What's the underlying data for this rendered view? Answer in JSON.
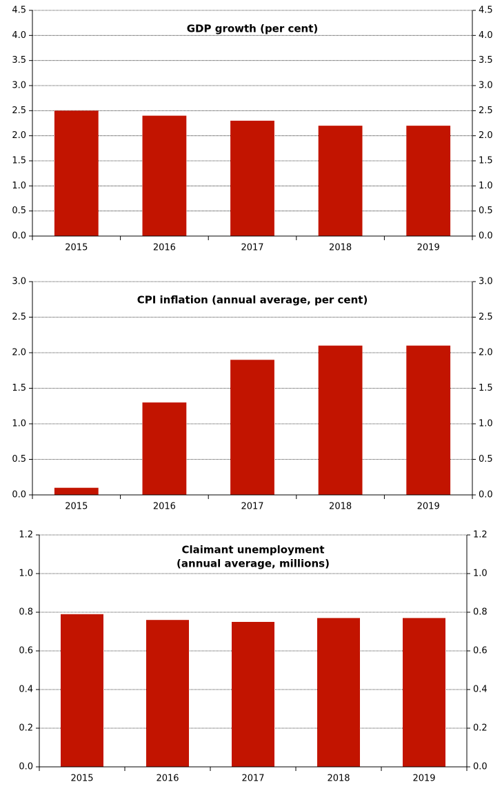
{
  "chart_data": [
    {
      "type": "bar",
      "title": "GDP growth (per cent)",
      "categories": [
        "2015",
        "2016",
        "2017",
        "2018",
        "2019"
      ],
      "values": [
        2.5,
        2.4,
        2.3,
        2.2,
        2.2
      ],
      "color": "#c21400",
      "ylim": [
        0,
        4.5
      ],
      "yticks": [
        {
          "value": 0,
          "label": "0.0"
        },
        0.5,
        {
          "value": 1,
          "label": "1.0"
        },
        1.5,
        {
          "value": 2,
          "label": "2.0"
        },
        2.5,
        {
          "value": 3,
          "label": "3.0"
        },
        3.5,
        {
          "value": 4,
          "label": "4.0"
        },
        4.5
      ],
      "grid": true
    },
    {
      "type": "bar",
      "title": "CPI inflation (annual average, per cent)",
      "categories": [
        "2015",
        "2016",
        "2017",
        "2018",
        "2019"
      ],
      "values": [
        0.1,
        1.3,
        1.9,
        2.1,
        2.1
      ],
      "color": "#c21400",
      "ylim": [
        0,
        3
      ],
      "yticks": [
        {
          "value": 0,
          "label": "0.0"
        },
        0.5,
        {
          "value": 1,
          "label": "1.0"
        },
        1.5,
        {
          "value": 2,
          "label": "2.0"
        },
        2.5,
        {
          "value": 3,
          "label": "3.0"
        }
      ],
      "grid": true
    },
    {
      "type": "bar",
      "title": [
        "Claimant unemployment",
        "(annual average, millions)"
      ],
      "categories": [
        "2015",
        "2016",
        "2017",
        "2018",
        "2019"
      ],
      "values": [
        0.79,
        0.76,
        0.75,
        0.77,
        0.77
      ],
      "color": "#c21400",
      "ylim": [
        0,
        1.2
      ],
      "yticks": [
        {
          "value": 0,
          "label": "0.0"
        },
        0.2,
        0.4,
        0.6,
        0.8,
        {
          "value": 1,
          "label": "1.0"
        },
        {
          "value": 1.2,
          "label": "1.2"
        }
      ],
      "grid": true
    }
  ]
}
